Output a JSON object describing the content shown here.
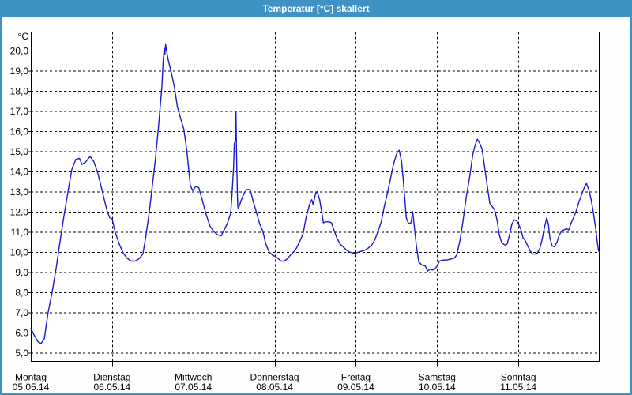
{
  "window": {
    "title": "Temperatur [°C] skaliert"
  },
  "colors": {
    "titlebar": "#3E93C4",
    "window_border": "#3E93C4",
    "background": "#FDFEFD",
    "plot_background": "#FFFFFF",
    "grid": "#000000",
    "axis": "#000000",
    "series_line": "#1A1ACC",
    "title_text": "#FFFFFF",
    "label_text": "#000000"
  },
  "chart_data": {
    "type": "line",
    "title": "Temperatur [°C] skaliert",
    "y_unit": "°C",
    "ylabel": "",
    "xlabel": "",
    "grid": "dashed",
    "legend": "none",
    "ylim_ticks": [
      5,
      20
    ],
    "y_tick_values": [
      20,
      19,
      18,
      17,
      16,
      15,
      14,
      13,
      12,
      11,
      10,
      9,
      8,
      7,
      6,
      5
    ],
    "y_tick_labels": [
      "20,0",
      "19,0",
      "18,0",
      "17,0",
      "16,0",
      "15,0",
      "14,0",
      "13,0",
      "12,0",
      "11,0",
      "10,0",
      "9,0",
      "8,0",
      "7,0",
      "6,0",
      "5,0"
    ],
    "x_range_hours": [
      0,
      168
    ],
    "hours_per_day": 24,
    "days": [
      {
        "name": "Montag",
        "date": "05.05.14"
      },
      {
        "name": "Dienstag",
        "date": "06.05.14"
      },
      {
        "name": "Mittwoch",
        "date": "07.05.14"
      },
      {
        "name": "Donnerstag",
        "date": "08.05.14"
      },
      {
        "name": "Freitag",
        "date": "09.05.14"
      },
      {
        "name": "Samstag",
        "date": "10.05.14"
      },
      {
        "name": "Sonntag",
        "date": "11.05.14"
      }
    ],
    "series": [
      {
        "name": "Temperatur",
        "color": "#1A1ACC",
        "points": [
          [
            0,
            6.2
          ],
          [
            0.9,
            5.9
          ],
          [
            2.1,
            5.55
          ],
          [
            3,
            5.45
          ],
          [
            4,
            5.7
          ],
          [
            5.1,
            7.0
          ],
          [
            6.3,
            8.0
          ],
          [
            7.5,
            9.2
          ],
          [
            8.6,
            10.5
          ],
          [
            9.8,
            11.8
          ],
          [
            11,
            13.0
          ],
          [
            12.1,
            14.1
          ],
          [
            13.3,
            14.6
          ],
          [
            14.4,
            14.65
          ],
          [
            15.1,
            14.35
          ],
          [
            16.1,
            14.45
          ],
          [
            17.5,
            14.75
          ],
          [
            18.6,
            14.5
          ],
          [
            19.8,
            13.9
          ],
          [
            20.7,
            13.3
          ],
          [
            21.7,
            12.6
          ],
          [
            22.6,
            12.0
          ],
          [
            23.3,
            11.7
          ],
          [
            24,
            11.65
          ],
          [
            24.9,
            11.0
          ],
          [
            26.1,
            10.4
          ],
          [
            27.3,
            9.95
          ],
          [
            28.4,
            9.7
          ],
          [
            29.6,
            9.55
          ],
          [
            30.8,
            9.55
          ],
          [
            31.9,
            9.65
          ],
          [
            33.1,
            9.9
          ],
          [
            34,
            10.8
          ],
          [
            35,
            12.0
          ],
          [
            35.9,
            13.3
          ],
          [
            36.8,
            14.6
          ],
          [
            37.7,
            16.2
          ],
          [
            38.7,
            18.2
          ],
          [
            39.1,
            19.5
          ],
          [
            39.4,
            20.1
          ],
          [
            39.6,
            19.8
          ],
          [
            39.8,
            20.3
          ],
          [
            40.5,
            19.6
          ],
          [
            41.5,
            18.9
          ],
          [
            42.4,
            18.2
          ],
          [
            43.3,
            17.2
          ],
          [
            44.3,
            16.6
          ],
          [
            45.2,
            16.1
          ],
          [
            46.1,
            15.0
          ],
          [
            47.1,
            13.3
          ],
          [
            47.8,
            13.05
          ],
          [
            48.7,
            13.25
          ],
          [
            49.6,
            13.2
          ],
          [
            50.6,
            12.6
          ],
          [
            51.7,
            11.9
          ],
          [
            52.9,
            11.3
          ],
          [
            54.1,
            11.0
          ],
          [
            55.2,
            10.85
          ],
          [
            56.2,
            10.8
          ],
          [
            57.1,
            11.1
          ],
          [
            58,
            11.4
          ],
          [
            59,
            11.9
          ],
          [
            59.4,
            12.8
          ],
          [
            59.9,
            14.2
          ],
          [
            60.1,
            15.4
          ],
          [
            60.4,
            15.5
          ],
          [
            60.6,
            16.95
          ],
          [
            60.8,
            14.5
          ],
          [
            61.1,
            12.3
          ],
          [
            61.3,
            12.15
          ],
          [
            62.2,
            12.6
          ],
          [
            63.1,
            12.95
          ],
          [
            63.8,
            13.1
          ],
          [
            64.8,
            13.1
          ],
          [
            65.7,
            12.5
          ],
          [
            66.6,
            12.0
          ],
          [
            67.6,
            11.4
          ],
          [
            68.5,
            11.05
          ],
          [
            69.4,
            10.4
          ],
          [
            70.4,
            10.0
          ],
          [
            71.3,
            9.85
          ],
          [
            72,
            9.8
          ],
          [
            72.9,
            9.7
          ],
          [
            73.9,
            9.55
          ],
          [
            74.8,
            9.55
          ],
          [
            75.7,
            9.65
          ],
          [
            76.7,
            9.85
          ],
          [
            77.6,
            10.0
          ],
          [
            78.5,
            10.2
          ],
          [
            79.5,
            10.55
          ],
          [
            80.4,
            10.9
          ],
          [
            81.3,
            11.7
          ],
          [
            82.3,
            12.35
          ],
          [
            83,
            12.6
          ],
          [
            83.4,
            12.35
          ],
          [
            84.1,
            12.9
          ],
          [
            84.6,
            13.0
          ],
          [
            85.3,
            12.6
          ],
          [
            86,
            11.9
          ],
          [
            86.4,
            11.45
          ],
          [
            87.1,
            11.5
          ],
          [
            88.1,
            11.5
          ],
          [
            88.8,
            11.45
          ],
          [
            89.5,
            11.1
          ],
          [
            90.4,
            10.7
          ],
          [
            91.3,
            10.4
          ],
          [
            92.3,
            10.25
          ],
          [
            93.2,
            10.1
          ],
          [
            94.1,
            10.0
          ],
          [
            95.1,
            9.95
          ],
          [
            96,
            9.95
          ],
          [
            96.9,
            10.0
          ],
          [
            97.9,
            10.05
          ],
          [
            98.8,
            10.1
          ],
          [
            99.7,
            10.2
          ],
          [
            100.7,
            10.35
          ],
          [
            101.6,
            10.6
          ],
          [
            102.5,
            11.0
          ],
          [
            103.5,
            11.5
          ],
          [
            104.4,
            12.25
          ],
          [
            105.3,
            12.9
          ],
          [
            106.3,
            13.7
          ],
          [
            107.2,
            14.4
          ],
          [
            108.1,
            14.9
          ],
          [
            108.8,
            15.05
          ],
          [
            109.5,
            14.5
          ],
          [
            110,
            13.6
          ],
          [
            110.4,
            12.8
          ],
          [
            110.9,
            11.7
          ],
          [
            111.6,
            11.4
          ],
          [
            112.3,
            11.45
          ],
          [
            112.8,
            12.0
          ],
          [
            113.2,
            11.4
          ],
          [
            113.9,
            10.3
          ],
          [
            114.6,
            9.5
          ],
          [
            115.6,
            9.35
          ],
          [
            116.5,
            9.3
          ],
          [
            117.2,
            9.05
          ],
          [
            117.9,
            9.15
          ],
          [
            118.6,
            9.1
          ],
          [
            119.3,
            9.15
          ],
          [
            120,
            9.3
          ],
          [
            120.7,
            9.55
          ],
          [
            121.7,
            9.6
          ],
          [
            122.8,
            9.6
          ],
          [
            124,
            9.65
          ],
          [
            125.1,
            9.7
          ],
          [
            125.8,
            9.85
          ],
          [
            126.8,
            10.6
          ],
          [
            127.7,
            11.6
          ],
          [
            128.6,
            12.7
          ],
          [
            129.6,
            13.7
          ],
          [
            130.5,
            14.8
          ],
          [
            131.2,
            15.3
          ],
          [
            131.9,
            15.6
          ],
          [
            132.6,
            15.4
          ],
          [
            133.3,
            15.1
          ],
          [
            134,
            14.25
          ],
          [
            134.9,
            13.2
          ],
          [
            135.6,
            12.4
          ],
          [
            136.3,
            12.25
          ],
          [
            137,
            12.1
          ],
          [
            137.7,
            11.6
          ],
          [
            138.4,
            10.85
          ],
          [
            139.1,
            10.45
          ],
          [
            140,
            10.35
          ],
          [
            140.7,
            10.4
          ],
          [
            141.4,
            10.85
          ],
          [
            142.1,
            11.4
          ],
          [
            142.8,
            11.6
          ],
          [
            143.5,
            11.55
          ],
          [
            144,
            11.4
          ],
          [
            144.7,
            11.15
          ],
          [
            145.4,
            10.7
          ],
          [
            146.1,
            10.55
          ],
          [
            146.8,
            10.3
          ],
          [
            147.5,
            10.05
          ],
          [
            148.2,
            9.9
          ],
          [
            148.9,
            9.9
          ],
          [
            149.6,
            9.95
          ],
          [
            150.3,
            10.15
          ],
          [
            151,
            10.6
          ],
          [
            151.7,
            11.2
          ],
          [
            152.4,
            11.7
          ],
          [
            152.9,
            11.35
          ],
          [
            153.3,
            10.7
          ],
          [
            154,
            10.3
          ],
          [
            154.7,
            10.25
          ],
          [
            155.4,
            10.5
          ],
          [
            156.1,
            10.85
          ],
          [
            156.8,
            11.05
          ],
          [
            157.5,
            11.1
          ],
          [
            158.2,
            11.15
          ],
          [
            158.9,
            11.1
          ],
          [
            159.6,
            11.45
          ],
          [
            160.3,
            11.7
          ],
          [
            161,
            12.0
          ],
          [
            161.9,
            12.5
          ],
          [
            162.9,
            12.95
          ],
          [
            163.6,
            13.25
          ],
          [
            164.1,
            13.4
          ],
          [
            164.8,
            13.1
          ],
          [
            165.5,
            12.6
          ],
          [
            166.2,
            11.9
          ],
          [
            166.9,
            11.1
          ],
          [
            167.3,
            10.5
          ],
          [
            167.7,
            10.05
          ],
          [
            168,
            10.0
          ]
        ]
      }
    ]
  }
}
